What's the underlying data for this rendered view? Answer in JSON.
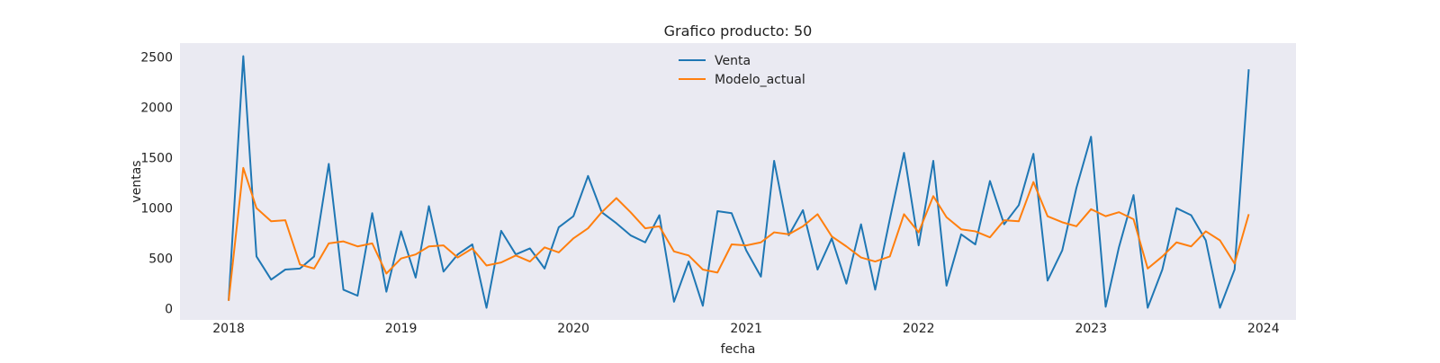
{
  "chart_data": {
    "type": "line",
    "title": "Grafico producto: 50",
    "xlabel": "fecha",
    "ylabel": "ventas",
    "x_start": "2018-01",
    "x_frequency": "monthly",
    "xlim": [
      "2017-09-20",
      "2024-03-10"
    ],
    "ylim": [
      -110,
      2640
    ],
    "x_ticks": [
      {
        "label": "2018",
        "value": "2018-01-01"
      },
      {
        "label": "2019",
        "value": "2019-01-01"
      },
      {
        "label": "2020",
        "value": "2020-01-01"
      },
      {
        "label": "2021",
        "value": "2021-01-01"
      },
      {
        "label": "2022",
        "value": "2022-01-01"
      },
      {
        "label": "2023",
        "value": "2023-01-01"
      },
      {
        "label": "2024",
        "value": "2024-01-01"
      }
    ],
    "y_ticks": [
      {
        "label": "0",
        "value": 0
      },
      {
        "label": "500",
        "value": 500
      },
      {
        "label": "1000",
        "value": 1000
      },
      {
        "label": "1500",
        "value": 1500
      },
      {
        "label": "2000",
        "value": 2000
      },
      {
        "label": "2500",
        "value": 2500
      }
    ],
    "grid": false,
    "legend_position": "top-center",
    "background": "#eaeaf2",
    "series": [
      {
        "name": "Venta",
        "color": "#1f77b4",
        "values": [
          80,
          2510,
          520,
          290,
          390,
          400,
          520,
          1440,
          190,
          130,
          950,
          170,
          770,
          310,
          1020,
          370,
          540,
          640,
          10,
          775,
          540,
          600,
          400,
          810,
          920,
          1320,
          960,
          850,
          730,
          660,
          930,
          70,
          470,
          30,
          970,
          950,
          580,
          320,
          1470,
          730,
          980,
          390,
          700,
          250,
          840,
          190,
          890,
          1550,
          630,
          1470,
          230,
          740,
          640,
          1270,
          840,
          1030,
          1540,
          280,
          580,
          1200,
          1710,
          20,
          610,
          1130,
          10,
          390,
          1000,
          930,
          680,
          10,
          390,
          2380
        ]
      },
      {
        "name": "Modelo_actual",
        "color": "#ff7f0e",
        "values": [
          80,
          1400,
          1000,
          870,
          880,
          440,
          400,
          650,
          670,
          620,
          650,
          350,
          500,
          540,
          620,
          630,
          510,
          600,
          430,
          460,
          530,
          470,
          610,
          560,
          700,
          800,
          960,
          1100,
          960,
          800,
          820,
          570,
          530,
          390,
          360,
          640,
          630,
          660,
          760,
          740,
          820,
          940,
          720,
          620,
          510,
          470,
          520,
          940,
          760,
          1120,
          910,
          790,
          770,
          710,
          880,
          870,
          1260,
          920,
          860,
          820,
          990,
          920,
          960,
          890,
          400,
          520,
          660,
          620,
          770,
          680,
          450,
          940
        ]
      }
    ]
  }
}
